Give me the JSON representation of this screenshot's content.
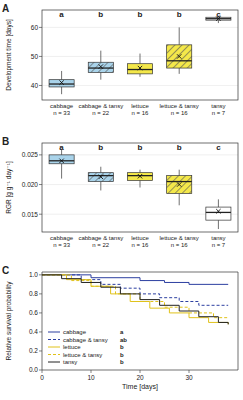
{
  "chart_data": [
    {
      "type": "box",
      "title": "A",
      "y_label": "Development time [days]",
      "categories": [
        "cabbage",
        "cabbage & tansy",
        "lettuce",
        "lettuce & tansy",
        "tansy"
      ],
      "sample_sizes": [
        "n = 33",
        "n = 22",
        "n = 16",
        "n = 16",
        "n = 7"
      ],
      "annotations": [
        "a",
        "b",
        "b",
        "b",
        "c"
      ],
      "ylim": [
        35,
        66
      ],
      "yticks": [
        40,
        50,
        60
      ],
      "marker": "x",
      "series": [
        {
          "color": "#a9d3ea",
          "line_style": "solid",
          "min": 37,
          "q1": 39.5,
          "median": 40.5,
          "q3": 42,
          "max": 45,
          "mean": 41
        },
        {
          "color": "#a9d3ea",
          "line_style": "hatched",
          "min": 42,
          "q1": 44.5,
          "median": 46,
          "q3": 48,
          "max": 52,
          "mean": 46.5
        },
        {
          "color": "#f4e84a",
          "line_style": "solid",
          "min": 43,
          "q1": 44,
          "median": 45.5,
          "q3": 47.5,
          "max": 51,
          "mean": 46
        },
        {
          "color": "#f4e84a",
          "line_style": "hatched",
          "min": 44,
          "q1": 46,
          "median": 48.5,
          "q3": 54,
          "max": 60,
          "mean": 50
        },
        {
          "color": "#ffffff",
          "line_style": "solid",
          "min": 61.5,
          "q1": 62.5,
          "median": 63,
          "q3": 63.5,
          "max": 64,
          "mean": 63
        }
      ]
    },
    {
      "type": "box",
      "title": "B",
      "y_label": "RGR [g g⁻¹ day⁻¹]",
      "categories": [
        "cabbage",
        "cabbage & tansy",
        "lettuce",
        "lettuce & tansy",
        "tansy"
      ],
      "sample_sizes": [
        "n = 33",
        "n = 22",
        "n = 16",
        "n = 16",
        "n = 7"
      ],
      "annotations": [
        "a",
        "b",
        "b",
        "b",
        "c"
      ],
      "ylim": [
        0.012,
        0.027
      ],
      "yticks": [
        0.015,
        {
          "value": 0.02,
          "label": "0.020"
        },
        0.025
      ],
      "marker": "x",
      "series": [
        {
          "color": "#a9d3ea",
          "line_style": "solid",
          "min": 0.021,
          "q1": 0.0235,
          "median": 0.024,
          "q3": 0.025,
          "max": 0.026,
          "mean": 0.024
        },
        {
          "color": "#a9d3ea",
          "line_style": "hatched",
          "min": 0.019,
          "q1": 0.0205,
          "median": 0.0215,
          "q3": 0.022,
          "max": 0.023,
          "mean": 0.0213
        },
        {
          "color": "#f4e84a",
          "line_style": "solid",
          "min": 0.0195,
          "q1": 0.0207,
          "median": 0.0215,
          "q3": 0.022,
          "max": 0.0225,
          "mean": 0.0214
        },
        {
          "color": "#f4e84a",
          "line_style": "hatched",
          "min": 0.0165,
          "q1": 0.0185,
          "median": 0.0205,
          "q3": 0.0215,
          "max": 0.0225,
          "mean": 0.02
        },
        {
          "color": "#ffffff",
          "line_style": "solid",
          "min": 0.0125,
          "q1": 0.014,
          "median": 0.0153,
          "q3": 0.0162,
          "max": 0.0175,
          "mean": 0.0155
        }
      ]
    },
    {
      "type": "line",
      "title": "C",
      "x_label": "Time [days]",
      "y_label": "Relative survival probability",
      "xlim": [
        0,
        40
      ],
      "xticks": [
        0,
        10,
        20,
        30
      ],
      "ylim": [
        0,
        1.03
      ],
      "yticks": [
        {
          "value": 0,
          "label": "0.0"
        },
        0.2,
        0.4,
        0.6,
        0.8,
        {
          "value": 1,
          "label": "1.0"
        }
      ],
      "legend": "bottom-left",
      "annotations": [
        "a",
        "ab",
        "b",
        "b",
        "b"
      ],
      "series": [
        {
          "name": "cabbage",
          "color": "#2c3fa0",
          "line_style": "solid",
          "x": [
            0,
            10,
            20,
            25,
            30,
            38
          ],
          "values": [
            1,
            0.97,
            0.94,
            0.92,
            0.9,
            0.9
          ]
        },
        {
          "name": "cabbage & tansy",
          "color": "#2c3fa0",
          "line_style": "dashed",
          "x": [
            0,
            8,
            12,
            16,
            20,
            24,
            28,
            32,
            38
          ],
          "values": [
            1,
            0.95,
            0.9,
            0.86,
            0.8,
            0.76,
            0.72,
            0.68,
            0.68
          ]
        },
        {
          "name": "lettuce",
          "color": "#e0c21a",
          "line_style": "solid",
          "x": [
            0,
            5,
            10,
            14,
            18,
            22,
            26,
            30,
            34,
            38
          ],
          "values": [
            1,
            0.95,
            0.88,
            0.8,
            0.72,
            0.65,
            0.6,
            0.55,
            0.5,
            0.48
          ]
        },
        {
          "name": "lettuce & tansy",
          "color": "#e0c21a",
          "line_style": "dashed",
          "x": [
            0,
            6,
            10,
            15,
            20,
            25,
            30,
            35,
            38
          ],
          "values": [
            1,
            0.94,
            0.88,
            0.8,
            0.72,
            0.66,
            0.6,
            0.55,
            0.55
          ]
        },
        {
          "name": "tansy",
          "color": "#222222",
          "line_style": "solid",
          "x": [
            0,
            4,
            8,
            12,
            16,
            20,
            24,
            28,
            32,
            36,
            38
          ],
          "values": [
            1,
            0.96,
            0.92,
            0.87,
            0.8,
            0.74,
            0.68,
            0.62,
            0.56,
            0.5,
            0.48
          ]
        }
      ]
    }
  ]
}
